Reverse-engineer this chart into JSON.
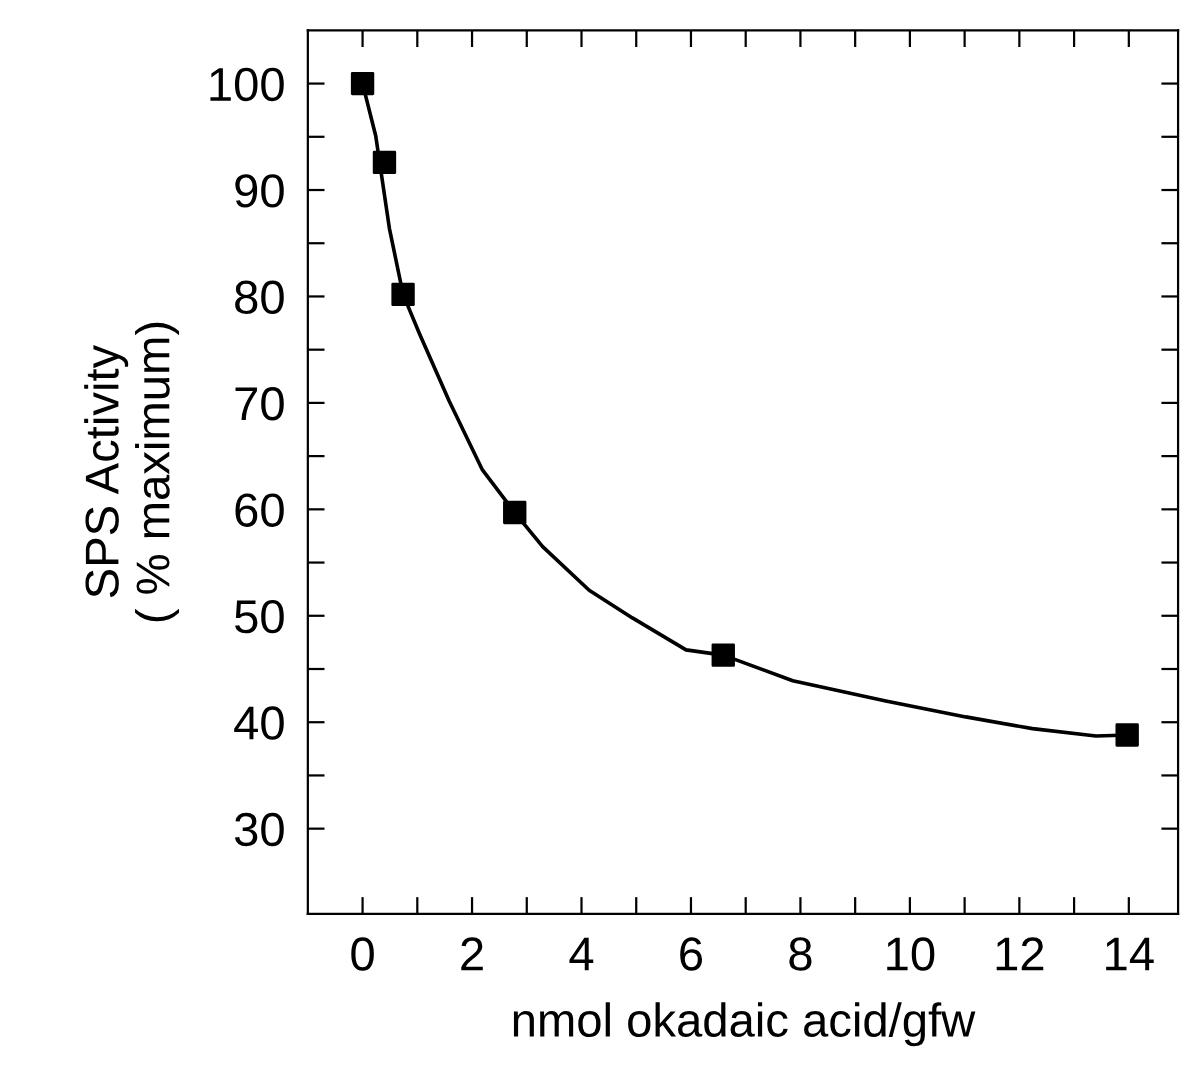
{
  "chart_data": {
    "type": "scatter",
    "xlabel": "nmol okadaic acid/gfw",
    "ylabel": "SPS Activity\n( % maximum)",
    "series": [
      {
        "color": "#000000",
        "marker": "square",
        "x": [
          0,
          0.4,
          0.74,
          2.78,
          6.59,
          13.97
        ],
        "values": [
          100,
          92.6,
          80.2,
          59.7,
          46.3,
          38.8
        ]
      },
      {
        "type": "line",
        "color": "#000000",
        "marker": "none",
        "line_style": "solid",
        "x": [
          0,
          0.24,
          0.49,
          0.74,
          1.04,
          1.58,
          2.19,
          2.78,
          3.29,
          4.14,
          4.93,
          5.91,
          6.59,
          7.86,
          9.56,
          11.02,
          12.24,
          13.4,
          13.97
        ],
        "values": [
          100,
          95.1,
          86.4,
          80.2,
          76.5,
          70.2,
          63.7,
          59.7,
          56.5,
          52.4,
          49.8,
          46.8,
          46.3,
          43.9,
          42.0,
          40.5,
          39.4,
          38.7,
          38.8
        ]
      }
    ],
    "xlim": [
      -1,
      14.9
    ],
    "ylim": [
      22,
      105
    ],
    "xticks": [
      0,
      {
        "value": 1,
        "label": null
      },
      2,
      {
        "value": 3,
        "label": null
      },
      4,
      {
        "value": 5,
        "label": null
      },
      6,
      {
        "value": 7,
        "label": null
      },
      8,
      {
        "value": 9,
        "label": null
      },
      10,
      {
        "value": 11,
        "label": null
      },
      12,
      {
        "value": 13,
        "label": null
      },
      14
    ],
    "yticks": [
      30,
      {
        "value": 35,
        "label": null
      },
      40,
      {
        "value": 45,
        "label": null
      },
      50,
      {
        "value": 55,
        "label": null
      },
      60,
      {
        "value": 65,
        "label": null
      },
      70,
      {
        "value": 75,
        "label": null
      },
      80,
      {
        "value": 85,
        "label": null
      },
      90,
      {
        "value": 95,
        "label": null
      },
      100
    ],
    "grid": false,
    "legend": false
  }
}
